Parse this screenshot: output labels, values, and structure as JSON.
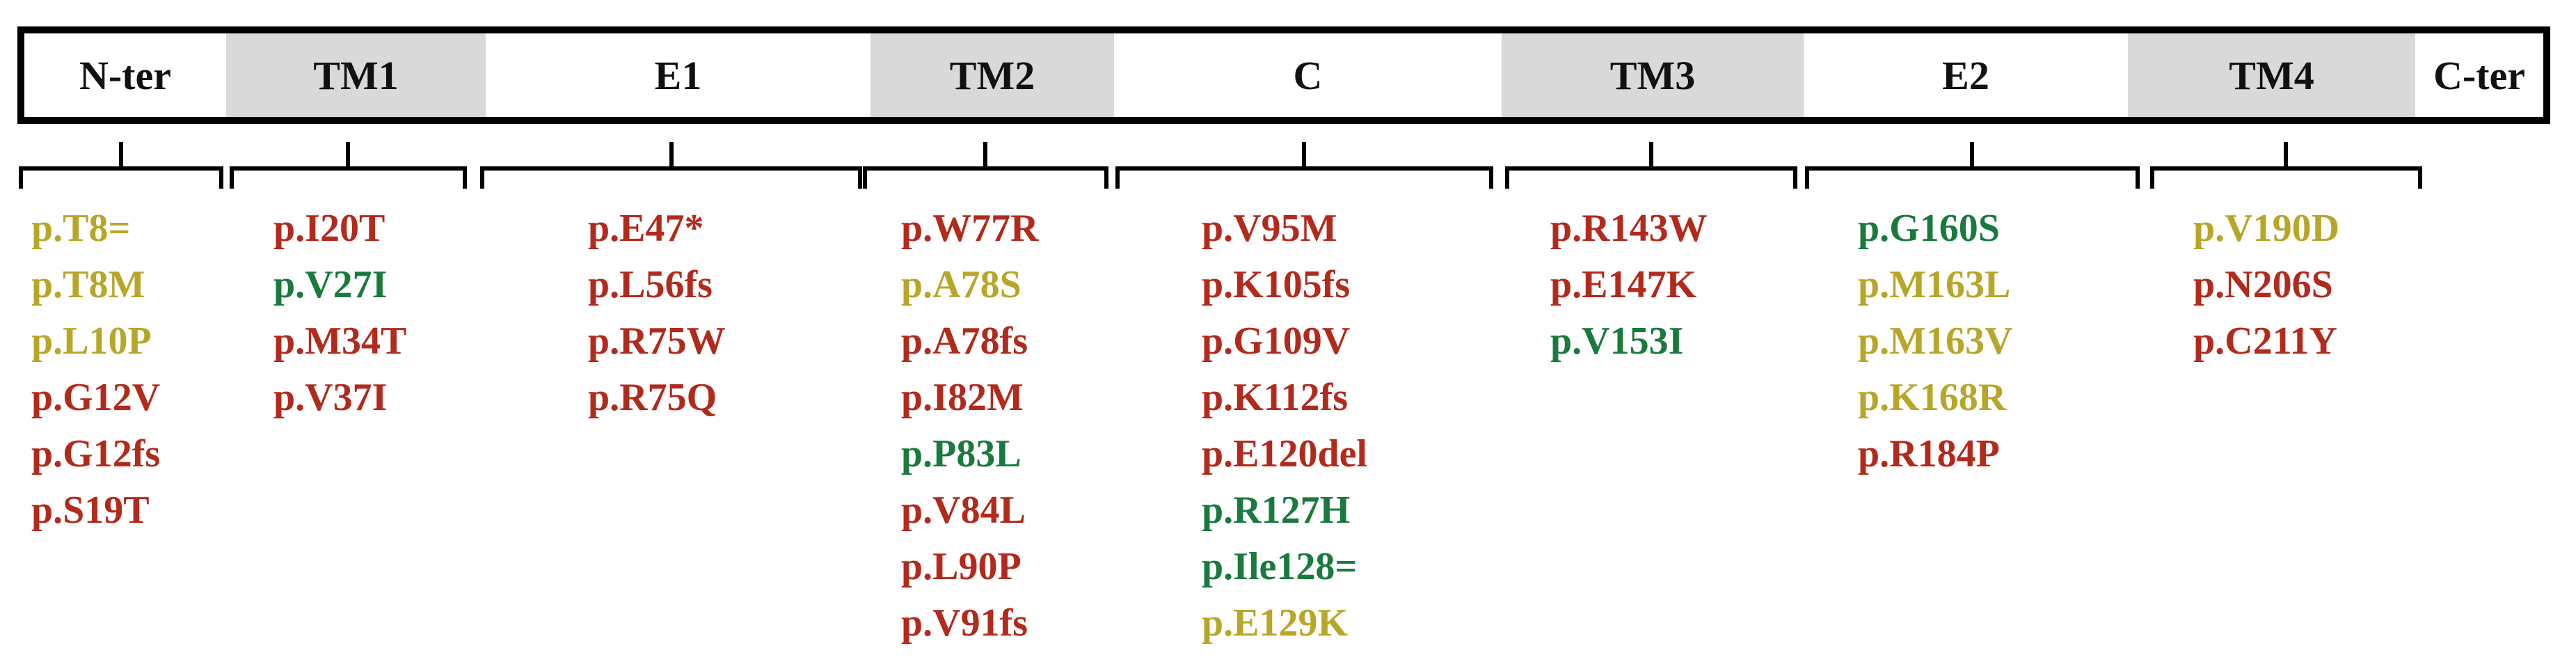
{
  "colors": {
    "red": "#b22a1c",
    "olive": "#b8a629",
    "green": "#1a7a3e",
    "shade": "#d9d9d9"
  },
  "domains": [
    {
      "label": "N-ter",
      "shaded": false
    },
    {
      "label": "TM1",
      "shaded": true
    },
    {
      "label": "E1",
      "shaded": false
    },
    {
      "label": "TM2",
      "shaded": true
    },
    {
      "label": "C",
      "shaded": false
    },
    {
      "label": "TM3",
      "shaded": true
    },
    {
      "label": "E2",
      "shaded": false
    },
    {
      "label": "TM4",
      "shaded": true
    },
    {
      "label": "C-ter",
      "shaded": false
    }
  ],
  "mutation_groups": [
    {
      "domain": "N-ter",
      "mutations": [
        {
          "text": "p.T8=",
          "color": "olive"
        },
        {
          "text": "p.T8M",
          "color": "olive"
        },
        {
          "text": "p.L10P",
          "color": "olive"
        },
        {
          "text": "p.G12V",
          "color": "red"
        },
        {
          "text": "p.G12fs",
          "color": "red"
        },
        {
          "text": "p.S19T",
          "color": "red"
        }
      ]
    },
    {
      "domain": "TM1",
      "mutations": [
        {
          "text": "p.I20T",
          "color": "red"
        },
        {
          "text": "p.V27I",
          "color": "green"
        },
        {
          "text": "p.M34T",
          "color": "red"
        },
        {
          "text": "p.V37I",
          "color": "red"
        }
      ]
    },
    {
      "domain": "E1",
      "mutations": [
        {
          "text": "p.E47*",
          "color": "red"
        },
        {
          "text": "p.L56fs",
          "color": "red"
        },
        {
          "text": "p.R75W",
          "color": "red"
        },
        {
          "text": "p.R75Q",
          "color": "red"
        }
      ]
    },
    {
      "domain": "TM2",
      "mutations": [
        {
          "text": "p.W77R",
          "color": "red"
        },
        {
          "text": "p.A78S",
          "color": "olive"
        },
        {
          "text": "p.A78fs",
          "color": "red"
        },
        {
          "text": "p.I82M",
          "color": "red"
        },
        {
          "text": "p.P83L",
          "color": "green"
        },
        {
          "text": "p.V84L",
          "color": "red"
        },
        {
          "text": "p.L90P",
          "color": "red"
        },
        {
          "text": "p.V91fs",
          "color": "red"
        }
      ]
    },
    {
      "domain": "C",
      "mutations": [
        {
          "text": "p.V95M",
          "color": "red"
        },
        {
          "text": "p.K105fs",
          "color": "red"
        },
        {
          "text": "p.G109V",
          "color": "red"
        },
        {
          "text": "p.K112fs",
          "color": "red"
        },
        {
          "text": "p.E120del",
          "color": "red"
        },
        {
          "text": "p.R127H",
          "color": "green"
        },
        {
          "text": "p.Ile128=",
          "color": "green"
        },
        {
          "text": "p.E129K",
          "color": "olive"
        }
      ]
    },
    {
      "domain": "TM3",
      "mutations": [
        {
          "text": "p.R143W",
          "color": "red"
        },
        {
          "text": "p.E147K",
          "color": "red"
        },
        {
          "text": "p.V153I",
          "color": "green"
        }
      ]
    },
    {
      "domain": "E2",
      "mutations": [
        {
          "text": "p.G160S",
          "color": "green"
        },
        {
          "text": "p.M163L",
          "color": "olive"
        },
        {
          "text": "p.M163V",
          "color": "olive"
        },
        {
          "text": "p.K168R",
          "color": "olive"
        },
        {
          "text": "p.R184P",
          "color": "red"
        }
      ]
    },
    {
      "domain": "TM4",
      "mutations": [
        {
          "text": "p.V190D",
          "color": "olive"
        },
        {
          "text": "p.N206S",
          "color": "red"
        },
        {
          "text": "p.C211Y",
          "color": "red"
        }
      ]
    }
  ]
}
